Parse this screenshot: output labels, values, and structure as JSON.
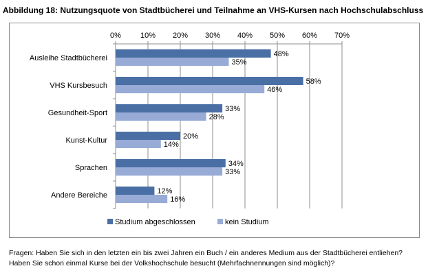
{
  "title": "Abbildung 18: Nutzungsquote von Stadtbücherei und Teilnahme an VHS-Kursen nach Hochschulabschluss",
  "chart_data": {
    "type": "bar",
    "orientation": "horizontal",
    "categories": [
      "Ausleihe Stadtbücherei",
      "VHS Kursbesuch",
      "Gesundheit-Sport",
      "Kunst-Kultur",
      "Sprachen",
      "Andere Bereiche"
    ],
    "series": [
      {
        "name": "Studium abgeschlossen",
        "values": [
          48,
          58,
          33,
          20,
          34,
          12
        ],
        "color": "#4a6fa5"
      },
      {
        "name": "kein Studium",
        "values": [
          35,
          46,
          28,
          14,
          33,
          16
        ],
        "color": "#98abd6"
      }
    ],
    "value_labels": [
      [
        "48%",
        "58%",
        "33%",
        "20%",
        "34%",
        "12%"
      ],
      [
        "35%",
        "46%",
        "28%",
        "14%",
        "33%",
        "16%"
      ]
    ],
    "x_ticks": [
      0,
      10,
      20,
      30,
      40,
      50,
      60,
      70
    ],
    "x_tick_labels": [
      "0%",
      "10%",
      "20%",
      "30%",
      "40%",
      "50%",
      "60%",
      "70%"
    ],
    "xlim": [
      0,
      70
    ],
    "axis_position": "top",
    "grid": true,
    "legend_position": "bottom"
  },
  "footnote": {
    "line1": "Fragen: Haben Sie sich in den letzten ein bis zwei Jahren ein Buch / ein anderes Medium aus der Stadtbücherei entliehen?",
    "line2": "Haben Sie schon einmal Kurse bei der Volkshochschule besucht (Mehrfachnennungen sind möglich)?"
  }
}
